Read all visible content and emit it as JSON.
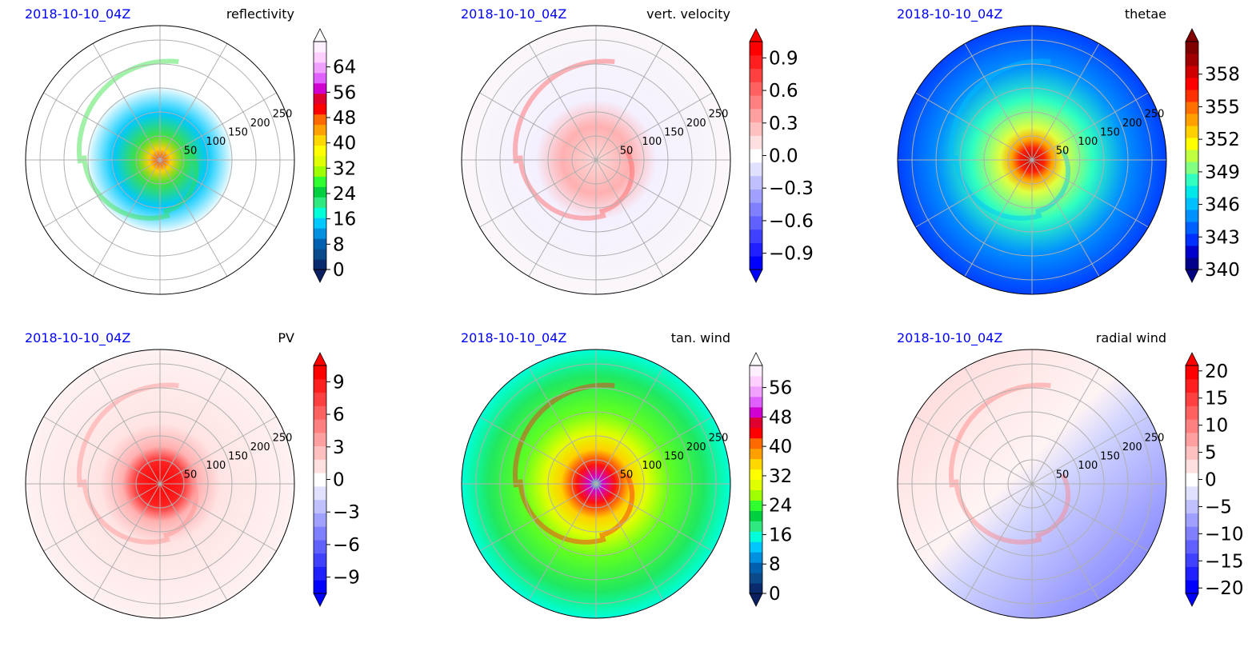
{
  "chart_data": [
    {
      "type": "heatmap",
      "projection": "polar",
      "date_label": "2018-10-10_04Z",
      "title": "reflectivity",
      "radial_labels": [
        "50",
        "100",
        "150",
        "200",
        "250"
      ],
      "colorbar": {
        "ticks": [
          "0",
          "8",
          "16",
          "24",
          "32",
          "40",
          "48",
          "56",
          "64"
        ],
        "range": [
          0,
          72
        ],
        "extend": "both",
        "colors": [
          "#0a2a6e",
          "#0b4a8a",
          "#0060b0",
          "#0090e0",
          "#00c8ff",
          "#00ffd8",
          "#30e880",
          "#00d040",
          "#30ff30",
          "#a0ff00",
          "#e0ff00",
          "#ffff00",
          "#ffd800",
          "#ffa000",
          "#ff6a00",
          "#ff0000",
          "#e00030",
          "#d000d0",
          "#e060ff",
          "#f0a0ff",
          "#ffd0ff",
          "#fff0ff"
        ],
        "extend_colors": [
          "#0a2060",
          "#ffffff"
        ]
      }
    },
    {
      "type": "heatmap",
      "projection": "polar",
      "date_label": "2018-10-10_04Z",
      "title": "vert. velocity",
      "radial_labels": [
        "50",
        "100",
        "150",
        "200",
        "250"
      ],
      "colorbar": {
        "ticks": [
          "0.9",
          "0.6",
          "0.3",
          "0.0",
          "−0.3",
          "−0.6",
          "−0.9"
        ],
        "range": [
          -1.05,
          1.05
        ],
        "extend": "both",
        "colors": [
          "#0000ff",
          "#1f1fff",
          "#4040ff",
          "#6060ff",
          "#8080ff",
          "#a0a0ff",
          "#c0c0ff",
          "#e0e0ff",
          "#ffffff",
          "#ffe0e0",
          "#ffc0c0",
          "#ffa0a0",
          "#ff8080",
          "#ff6060",
          "#ff4040",
          "#ff1f1f",
          "#ff0000"
        ],
        "extend_colors": [
          "#0000ff",
          "#ff0000"
        ]
      }
    },
    {
      "type": "heatmap",
      "projection": "polar",
      "date_label": "2018-10-10_04Z",
      "title": "thetae",
      "radial_labels": [
        "50",
        "100",
        "150",
        "200",
        "250"
      ],
      "colorbar": {
        "ticks": [
          "358",
          "355",
          "352",
          "349",
          "346",
          "343",
          "340"
        ],
        "range": [
          340,
          361
        ],
        "extend": "both",
        "colors": [
          "#00008b",
          "#0000cd",
          "#0030ff",
          "#0060ff",
          "#0090ff",
          "#00c0ff",
          "#00e8e8",
          "#30ffc0",
          "#80ff80",
          "#c0ff40",
          "#ffff00",
          "#ffd000",
          "#ffa000",
          "#ff7000",
          "#ff3000",
          "#ff0000",
          "#d00000",
          "#a00000",
          "#800000"
        ],
        "extend_colors": [
          "#000080",
          "#800000"
        ]
      }
    },
    {
      "type": "heatmap",
      "projection": "polar",
      "date_label": "2018-10-10_04Z",
      "title": "PV",
      "radial_labels": [
        "50",
        "100",
        "150",
        "200",
        "250"
      ],
      "colorbar": {
        "ticks": [
          "9",
          "6",
          "3",
          "0",
          "−3",
          "−6",
          "−9"
        ],
        "range": [
          -10.5,
          10.5
        ],
        "extend": "both",
        "colors": [
          "#0000ff",
          "#1f1fff",
          "#4040ff",
          "#6060ff",
          "#8080ff",
          "#a0a0ff",
          "#c0c0ff",
          "#e0e0ff",
          "#ffffff",
          "#ffe0e0",
          "#ffc0c0",
          "#ffa0a0",
          "#ff8080",
          "#ff6060",
          "#ff4040",
          "#ff1f1f",
          "#ff0000"
        ],
        "extend_colors": [
          "#0000ff",
          "#ff0000"
        ]
      }
    },
    {
      "type": "heatmap",
      "projection": "polar",
      "date_label": "2018-10-10_04Z",
      "title": "tan. wind",
      "radial_labels": [
        "50",
        "100",
        "150",
        "200",
        "250"
      ],
      "colorbar": {
        "ticks": [
          "56",
          "48",
          "40",
          "32",
          "24",
          "16",
          "8",
          "0"
        ],
        "range": [
          0,
          62
        ],
        "extend": "both",
        "colors": [
          "#0a2a6e",
          "#0b4a8a",
          "#0060b0",
          "#0090e0",
          "#00c8ff",
          "#00ffd8",
          "#30e880",
          "#00d040",
          "#30ff30",
          "#a0ff00",
          "#e0ff00",
          "#ffff00",
          "#ffd800",
          "#ffa000",
          "#ff6a00",
          "#ff0000",
          "#e00030",
          "#d000d0",
          "#e060ff",
          "#f0a0ff",
          "#ffd0ff",
          "#fff0ff"
        ],
        "extend_colors": [
          "#0a2060",
          "#ffffff"
        ]
      }
    },
    {
      "type": "heatmap",
      "projection": "polar",
      "date_label": "2018-10-10_04Z",
      "title": "radial wind",
      "radial_labels": [
        "50",
        "100",
        "150",
        "200",
        "250"
      ],
      "colorbar": {
        "ticks": [
          "20",
          "15",
          "10",
          "5",
          "0",
          "−5",
          "−10",
          "−15",
          "−20"
        ],
        "range": [
          -21,
          21
        ],
        "extend": "both",
        "colors": [
          "#0000ff",
          "#1f1fff",
          "#4040ff",
          "#6060ff",
          "#8080ff",
          "#a0a0ff",
          "#c0c0ff",
          "#e0e0ff",
          "#ffffff",
          "#ffe0e0",
          "#ffc0c0",
          "#ffa0a0",
          "#ff8080",
          "#ff6060",
          "#ff4040",
          "#ff1f1f",
          "#ff0000"
        ],
        "extend_colors": [
          "#0000ff",
          "#ff0000"
        ]
      }
    }
  ]
}
